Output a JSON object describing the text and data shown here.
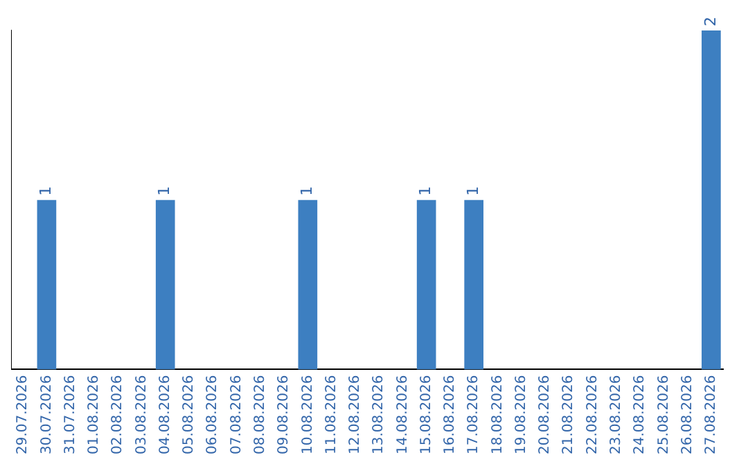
{
  "chart_data": {
    "type": "bar",
    "categories": [
      "29.07.2026",
      "30.07.2026",
      "31.07.2026",
      "01.08.2026",
      "02.08.2026",
      "03.08.2026",
      "04.08.2026",
      "05.08.2026",
      "06.08.2026",
      "07.08.2026",
      "08.08.2026",
      "09.08.2026",
      "10.08.2026",
      "11.08.2026",
      "12.08.2026",
      "13.08.2026",
      "14.08.2026",
      "15.08.2026",
      "16.08.2026",
      "17.08.2026",
      "18.08.2026",
      "19.08.2026",
      "20.08.2026",
      "21.08.2026",
      "22.08.2026",
      "23.08.2026",
      "24.08.2026",
      "25.08.2026",
      "26.08.2026",
      "27.08.2026"
    ],
    "values": [
      0,
      1,
      0,
      0,
      0,
      0,
      1,
      0,
      0,
      0,
      0,
      0,
      1,
      0,
      0,
      0,
      0,
      1,
      0,
      1,
      0,
      0,
      0,
      0,
      0,
      0,
      0,
      0,
      0,
      2
    ],
    "value_labels": [
      null,
      "1",
      null,
      null,
      null,
      null,
      "1",
      null,
      null,
      null,
      null,
      null,
      "1",
      null,
      null,
      null,
      null,
      "1",
      null,
      "1",
      null,
      null,
      null,
      null,
      null,
      null,
      null,
      null,
      null,
      "2"
    ],
    "color": "#3d7fc1",
    "grid": false,
    "legend": false,
    "tick_labels": "x"
  }
}
